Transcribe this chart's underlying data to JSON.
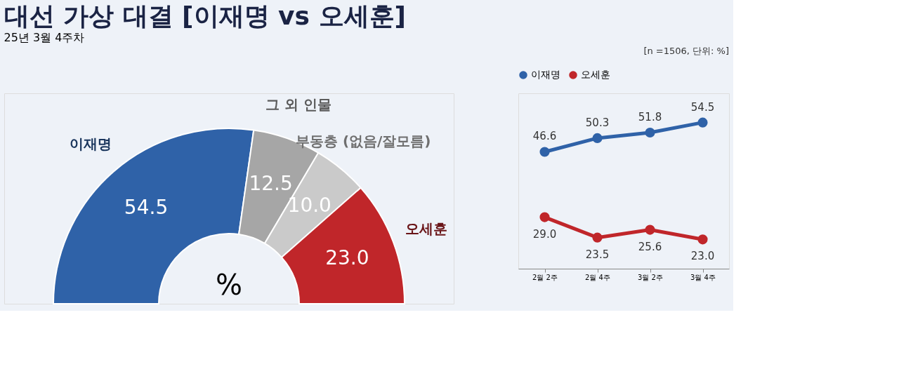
{
  "chart_data": [
    {
      "type": "donut",
      "title": "대선 가상 대결 [이재명 vs 오세훈]",
      "subtitle": "25년 3월 4주차",
      "categories": [
        "이재명",
        "그 외 인물",
        "부동층 (없음/잘모름)",
        "오세훈"
      ],
      "values": [
        54.5,
        12.5,
        10.0,
        23.0
      ],
      "value_labels": [
        "54.5",
        "12.5",
        "10.0",
        "23.0"
      ],
      "colors": [
        "#2f62a8",
        "#a6a6a6",
        "#cacaca",
        "#c0262a"
      ],
      "annotations": [
        "%"
      ],
      "legend": false
    },
    {
      "type": "line",
      "categories": [
        "2월 2주",
        "2월 4주",
        "3월 2주",
        "3월 4주"
      ],
      "series": [
        {
          "name": "이재명",
          "color": "#2f62a8",
          "values": [
            46.6,
            50.3,
            51.8,
            54.5
          ],
          "value_labels": [
            "46.6",
            "50.3",
            "51.8",
            "54.5"
          ]
        },
        {
          "name": "오세훈",
          "color": "#c0262a",
          "values": [
            29.0,
            23.5,
            25.6,
            23.0
          ],
          "value_labels": [
            "29.0",
            "23.5",
            "25.6",
            "23.0"
          ]
        }
      ],
      "marker": "circle",
      "legend": "top",
      "tick_labels": "x",
      "annotations": [
        "[n =1506, 단위: %]"
      ]
    }
  ]
}
